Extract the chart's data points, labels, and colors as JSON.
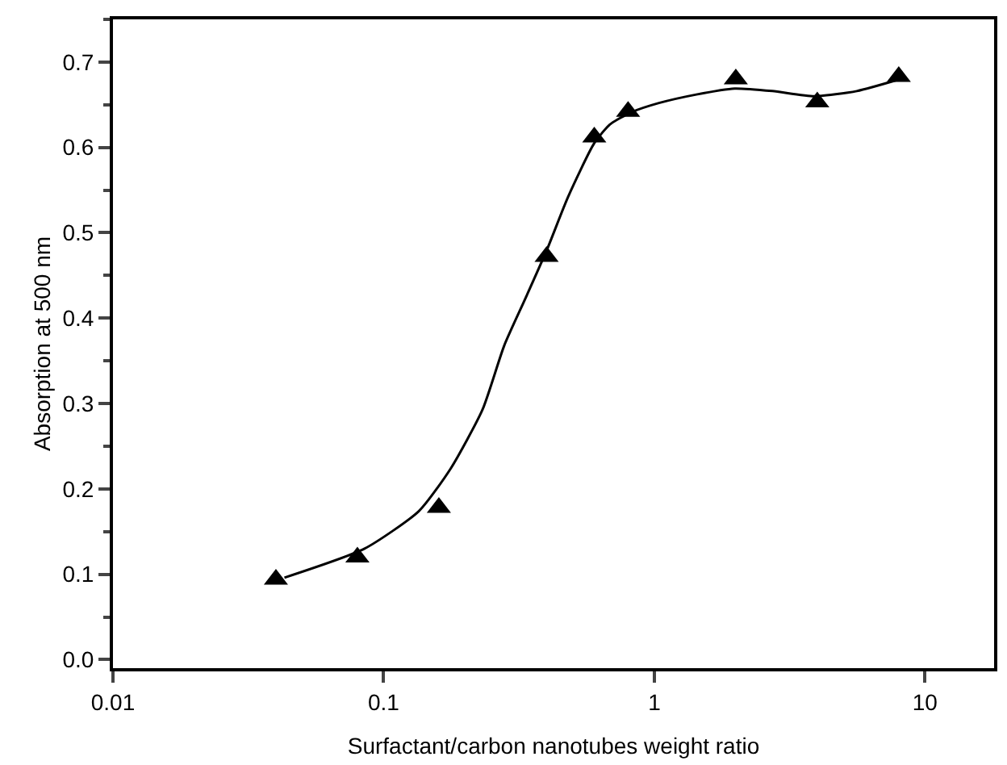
{
  "chart_data": {
    "type": "scatter",
    "xlabel": "Surfactant/carbon nanotubes weight ratio",
    "ylabel": "Absorption at 500 nm",
    "log": "x",
    "grid": false,
    "xlim": [
      0.01,
      18
    ],
    "xticks": [
      0.01,
      0.1,
      1,
      10
    ],
    "ylim": [
      -0.01,
      0.75
    ],
    "yticks": [
      {
        "value": 0,
        "label": "0.0"
      },
      0.1,
      0.2,
      0.3,
      0.4,
      0.5,
      0.6,
      0.7
    ],
    "series": [
      {
        "marker": "triangle",
        "color": "#000000",
        "x": [
          0.04,
          0.08,
          0.16,
          0.4,
          0.6,
          0.8,
          2,
          4,
          8
        ],
        "values": [
          0.094,
          0.12,
          0.178,
          0.472,
          0.612,
          0.642,
          0.68,
          0.653,
          0.683
        ]
      },
      {
        "type": "line",
        "marker": "none",
        "line_style": "solid",
        "color": "#000000",
        "x": [
          0.043,
          0.085,
          0.135,
          0.177,
          0.232,
          0.279,
          0.335,
          0.401,
          0.48,
          0.6,
          0.686,
          0.82,
          1.04,
          1.43,
          1.98,
          2.73,
          3.9,
          5.6,
          8.1
        ],
        "values": [
          0.096,
          0.13,
          0.174,
          0.224,
          0.293,
          0.368,
          0.424,
          0.48,
          0.542,
          0.605,
          0.627,
          0.641,
          0.652,
          0.662,
          0.669,
          0.666,
          0.66,
          0.666,
          0.68
        ]
      }
    ]
  }
}
